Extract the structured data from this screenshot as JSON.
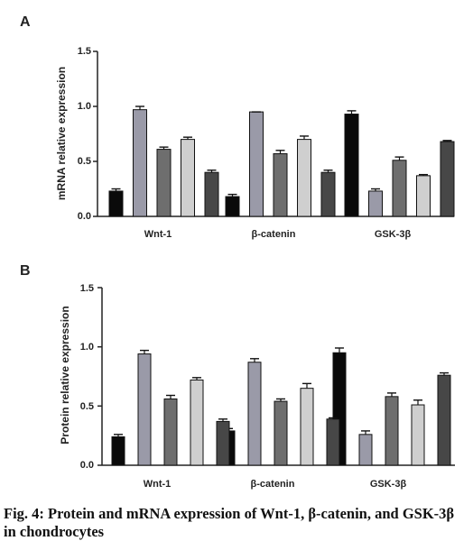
{
  "panels": [
    {
      "letter": "A",
      "ylabel": "mRNA relative expression",
      "yticks": [
        "0.0",
        "0.5",
        "1.0",
        "1.5"
      ]
    },
    {
      "letter": "B",
      "ylabel": "Protein relative expression",
      "yticks": [
        "0.0",
        "0.5",
        "1.0",
        "1.5"
      ]
    }
  ],
  "caption": "Fig. 4: Protein and mRNA expression of Wnt-1, β-catenin, and GSK-3β in chondrocytes",
  "series_colors": [
    "#0a0a0a",
    "#9a9aa8",
    "#6e6e6e",
    "#cfcfcf",
    "#474747"
  ],
  "chart_data": [
    {
      "type": "bar",
      "ylabel": "mRNA relative expression",
      "ylim": [
        0,
        1.5
      ],
      "categories": [
        "Wnt-1",
        "β-catenin",
        "GSK-3β"
      ],
      "series": [
        {
          "values": [
            0.23,
            0.18,
            0.93
          ],
          "errors": [
            0.02,
            0.02,
            0.03
          ]
        },
        {
          "values": [
            0.97,
            0.95,
            0.23
          ],
          "errors": [
            0.03,
            0.0,
            0.02
          ]
        },
        {
          "values": [
            0.61,
            0.57,
            0.51
          ],
          "errors": [
            0.02,
            0.03,
            0.03
          ]
        },
        {
          "values": [
            0.7,
            0.7,
            0.37
          ],
          "errors": [
            0.02,
            0.03,
            0.01
          ]
        },
        {
          "values": [
            0.4,
            0.4,
            0.68
          ],
          "errors": [
            0.02,
            0.02,
            0.01
          ]
        }
      ]
    },
    {
      "type": "bar",
      "ylabel": "Protein relative expression",
      "ylim": [
        0,
        1.5
      ],
      "categories": [
        "Wnt-1",
        "β-catenin",
        "GSK-3β"
      ],
      "series": [
        {
          "values": [
            0.24,
            0.29,
            0.95
          ],
          "errors": [
            0.02,
            0.02,
            0.04
          ]
        },
        {
          "values": [
            0.94,
            0.87,
            0.26
          ],
          "errors": [
            0.03,
            0.03,
            0.03
          ]
        },
        {
          "values": [
            0.56,
            0.54,
            0.58
          ],
          "errors": [
            0.03,
            0.02,
            0.03
          ]
        },
        {
          "values": [
            0.72,
            0.65,
            0.51
          ],
          "errors": [
            0.02,
            0.04,
            0.04
          ]
        },
        {
          "values": [
            0.37,
            0.39,
            0.76
          ],
          "errors": [
            0.02,
            0.01,
            0.02
          ]
        }
      ]
    }
  ]
}
